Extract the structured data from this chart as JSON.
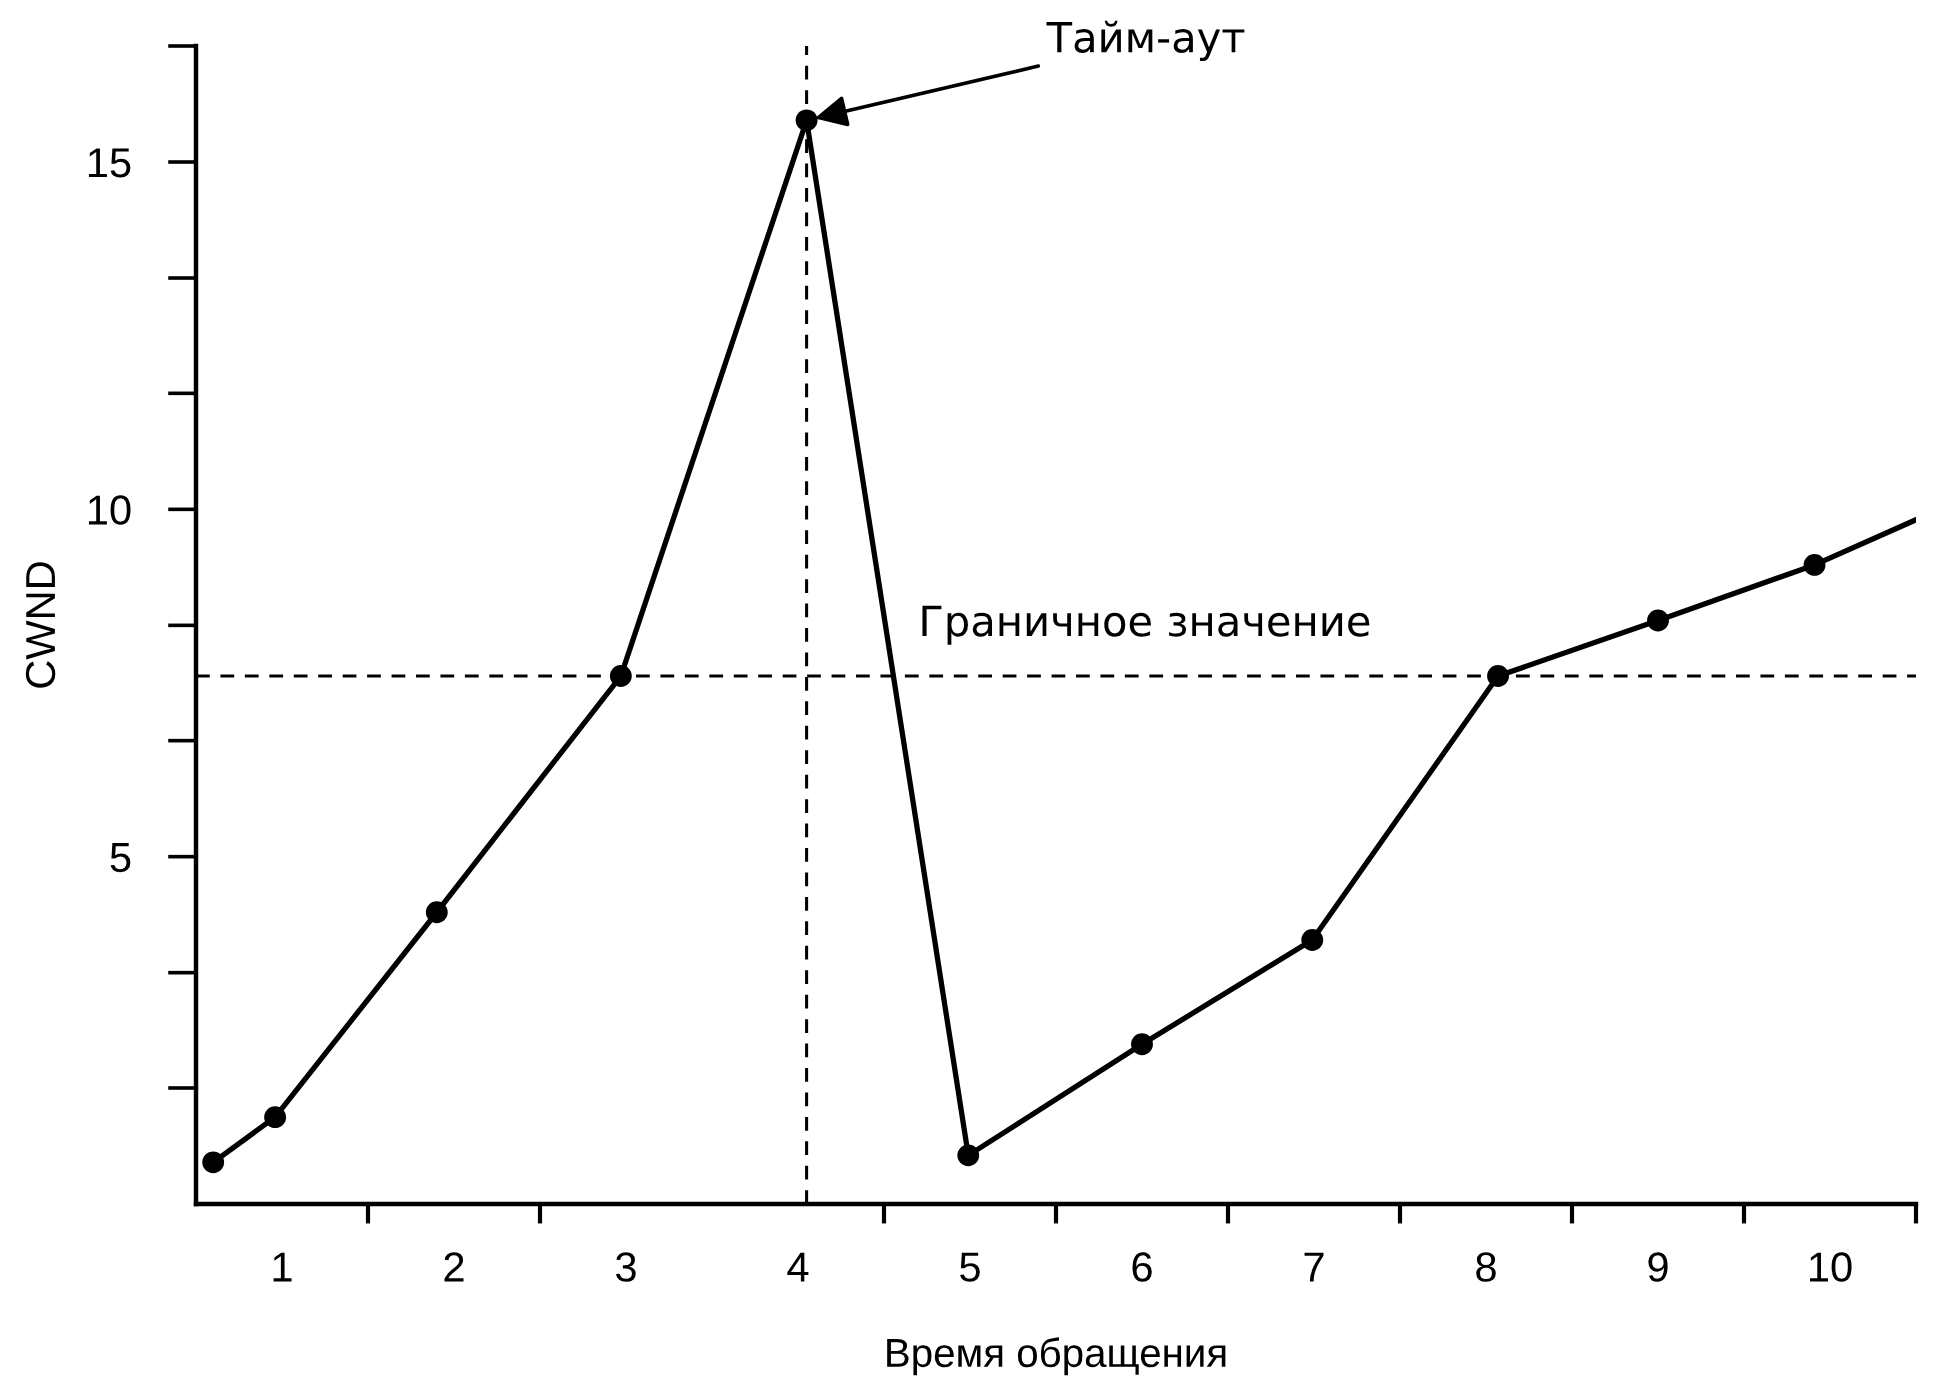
{
  "chart_data": {
    "type": "line",
    "xlabel": "Время обращения",
    "ylabel": "CWND",
    "xlim": [
      0.5,
      10.5
    ],
    "xticks": [
      1,
      {
        "value": 1.5,
        "label": null
      },
      2,
      {
        "value": 2.5,
        "label": null
      },
      3,
      4,
      {
        "value": 4.5,
        "label": null
      },
      5,
      {
        "value": 5.5,
        "label": null
      },
      6,
      {
        "value": 6.5,
        "label": null
      },
      7,
      {
        "value": 7.5,
        "label": null
      },
      8,
      {
        "value": 8.5,
        "label": null
      },
      9,
      {
        "value": 9.5,
        "label": null
      },
      10,
      {
        "value": 10.5,
        "label": null
      }
    ],
    "ylim": [
      0,
      16.67
    ],
    "yticks": [
      {
        "value": 1.67,
        "label": null
      },
      {
        "value": 3.33,
        "label": null
      },
      5,
      {
        "value": 6.67,
        "label": null
      },
      {
        "value": 8.33,
        "label": null
      },
      10,
      {
        "value": 11.67,
        "label": null
      },
      {
        "value": 13.33,
        "label": null
      },
      15,
      {
        "value": 16.67,
        "label": null
      }
    ],
    "series": [
      {
        "type": "line",
        "color": "#000000",
        "line_style": "solid",
        "x": [
          0.6,
          0.96,
          1.9,
          2.97,
          4.05,
          4.99,
          6.0,
          6.99,
          8.07,
          9.0,
          9.91,
          10.5
        ],
        "values": [
          0.6,
          1.25,
          4.2,
          7.6,
          15.6,
          0.7,
          2.3,
          3.8,
          7.6,
          8.4,
          9.2,
          9.85
        ]
      },
      {
        "type": "scatter",
        "color": "#000000",
        "marker": "circle",
        "x": [
          0.6,
          0.96,
          1.9,
          2.97,
          4.05,
          4.99,
          6.0,
          6.99,
          8.07,
          9.0,
          9.91
        ],
        "values": [
          0.6,
          1.25,
          4.2,
          7.6,
          15.6,
          0.7,
          2.3,
          3.8,
          7.6,
          8.4,
          9.2
        ]
      }
    ],
    "ref_lines": [
      {
        "axis": "y",
        "value": 7.6,
        "label": "Граничное значение",
        "color": "#000000",
        "line_style": "dashed"
      },
      {
        "axis": "x",
        "value": 4.05,
        "color": "#000000",
        "line_style": "dashed"
      }
    ],
    "annotations": [
      {
        "text": "Тайм-аут",
        "x": 4.05,
        "y": 15.6
      }
    ]
  }
}
